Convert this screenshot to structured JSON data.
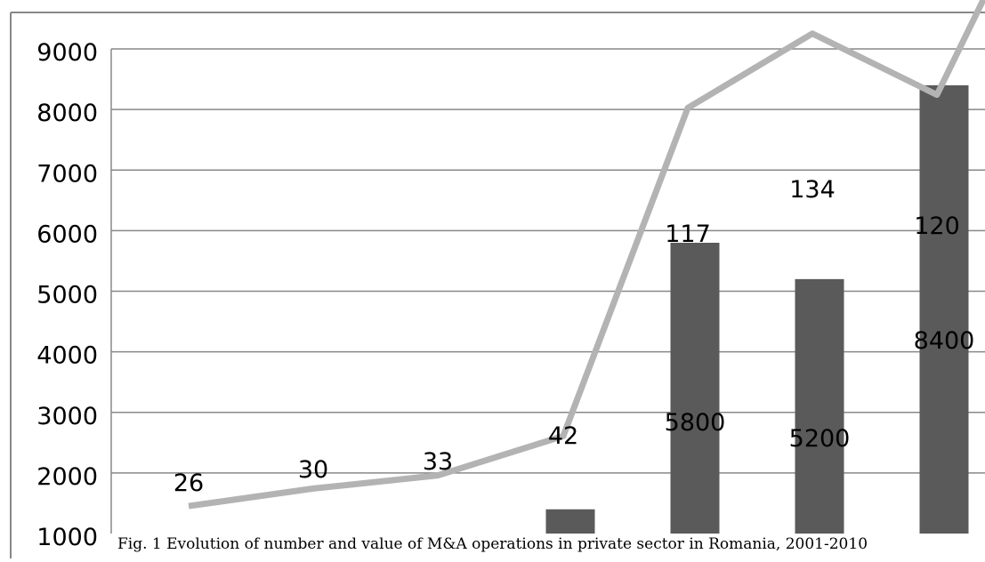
{
  "caption": "Fig. 1 Evolution of number and value of M&A operations in private sector in Romania, 2001-2010",
  "colors": {
    "bars": "#5a5a5a",
    "line": "#b3b3b3",
    "grid": "#888888",
    "frame": "#888888",
    "text": "#000000"
  },
  "chart_data": {
    "type": "bar",
    "title": "",
    "xlabel": "",
    "ylabel": "",
    "ylim": [
      1000,
      9000
    ],
    "yticks": [
      1000,
      2000,
      3000,
      4000,
      5000,
      6000,
      7000,
      8000,
      9000
    ],
    "grid": true,
    "series": [
      {
        "type": "bar",
        "values": [
          null,
          null,
          null,
          1400,
          5800,
          5200,
          8400
        ],
        "data_labels": [
          "",
          "",
          "",
          "",
          "5800",
          "5200",
          "8400"
        ]
      },
      {
        "type": "line",
        "values": [
          26,
          30,
          33,
          42,
          117,
          134,
          120,
          145
        ],
        "data_labels": [
          "26",
          "30",
          "33",
          "42",
          "117",
          "134",
          "120",
          ""
        ]
      }
    ]
  }
}
